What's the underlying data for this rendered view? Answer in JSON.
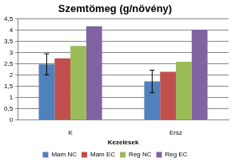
{
  "chart_data": {
    "type": "bar",
    "title": "Szemtömeg (g/növény)",
    "x_label": "Kezelések",
    "categories": [
      "K",
      "Ersz"
    ],
    "series": [
      {
        "name": "Mam NC",
        "color": "#4f81bd",
        "values": [
          2.48,
          1.72
        ],
        "errors": [
          0.47,
          0.5
        ]
      },
      {
        "name": "Mam EC",
        "color": "#c0504d",
        "values": [
          2.75,
          2.15
        ]
      },
      {
        "name": "Reg NC",
        "color": "#9bbb59",
        "values": [
          3.3,
          2.6
        ]
      },
      {
        "name": "Reg EC",
        "color": "#8064a2",
        "values": [
          4.17,
          4.02
        ]
      }
    ],
    "ylim": [
      0,
      4.5
    ],
    "yticks": [
      0,
      {
        "value": 0.5,
        "label": "0,5"
      },
      1,
      {
        "value": 1.5,
        "label": "1,5"
      },
      2,
      {
        "value": 2.5,
        "label": "2,5"
      },
      3,
      {
        "value": 3.5,
        "label": "3,5"
      },
      4,
      {
        "value": 4.5,
        "label": "4,5"
      }
    ],
    "grid": true,
    "legend": "bottom"
  }
}
